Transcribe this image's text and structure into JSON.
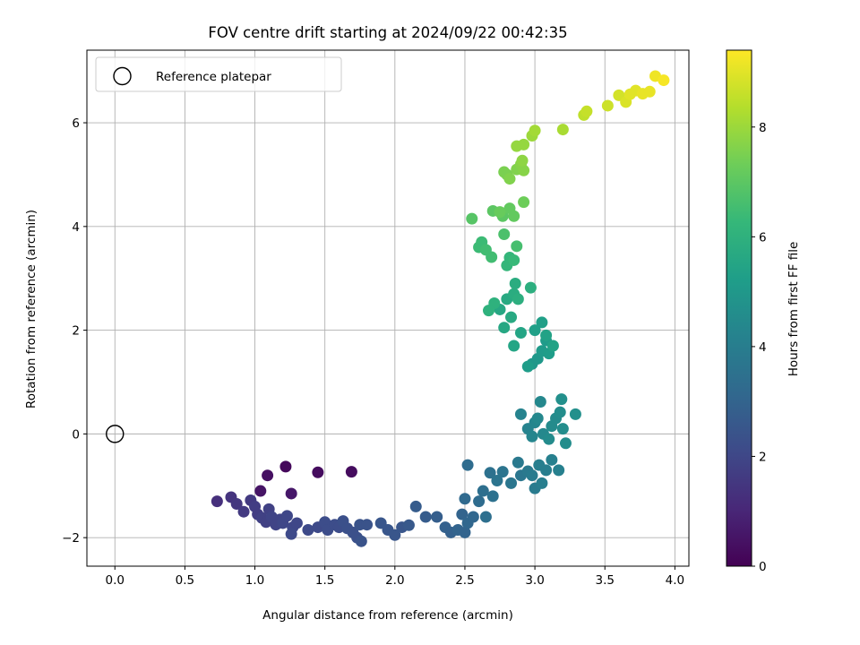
{
  "chart_data": {
    "type": "scatter",
    "title": "FOV centre drift starting at 2024/09/22 00:42:35",
    "xlabel": "Angular distance from reference (arcmin)",
    "ylabel": "Rotation from reference (arcmin)",
    "xlim": [
      -0.2,
      4.1
    ],
    "ylim": [
      -2.55,
      7.4
    ],
    "xticks": [
      "0.0",
      "0.5",
      "1.0",
      "1.5",
      "2.0",
      "2.5",
      "3.0",
      "3.5",
      "4.0"
    ],
    "yticks": [
      "−2",
      "0",
      "2",
      "4",
      "6"
    ],
    "grid": true,
    "legend": {
      "placement": "top-left",
      "entries": [
        "Reference platepar"
      ]
    },
    "reference_point": {
      "x": 0.0,
      "y": 0.0
    },
    "colorbar": {
      "label": "Hours from first FF file",
      "colormap": "viridis",
      "range": [
        0,
        9.4
      ],
      "ticks": [
        "0",
        "2",
        "4",
        "6",
        "8"
      ]
    },
    "points": [
      [
        1.22,
        -0.63,
        0.2
      ],
      [
        1.69,
        -0.73,
        0.3
      ],
      [
        1.45,
        -0.74,
        0.3
      ],
      [
        1.09,
        -0.8,
        0.4
      ],
      [
        1.26,
        -1.15,
        0.6
      ],
      [
        1.04,
        -1.1,
        0.5
      ],
      [
        0.73,
        -1.3,
        1.3
      ],
      [
        0.83,
        -1.22,
        1.4
      ],
      [
        0.87,
        -1.35,
        1.5
      ],
      [
        0.92,
        -1.5,
        1.6
      ],
      [
        0.97,
        -1.28,
        1.6
      ],
      [
        1.0,
        -1.4,
        1.7
      ],
      [
        1.02,
        -1.55,
        1.7
      ],
      [
        1.05,
        -1.62,
        1.8
      ],
      [
        1.08,
        -1.7,
        1.8
      ],
      [
        1.1,
        -1.45,
        1.8
      ],
      [
        1.12,
        -1.6,
        1.9
      ],
      [
        1.15,
        -1.75,
        1.9
      ],
      [
        1.18,
        -1.65,
        1.9
      ],
      [
        1.2,
        -1.72,
        2.0
      ],
      [
        1.23,
        -1.58,
        2.0
      ],
      [
        1.27,
        -1.8,
        2.0
      ],
      [
        1.3,
        -1.72,
        2.0
      ],
      [
        1.26,
        -1.93,
        2.1
      ],
      [
        1.38,
        -1.85,
        2.1
      ],
      [
        1.45,
        -1.8,
        2.1
      ],
      [
        1.5,
        -1.7,
        2.2
      ],
      [
        1.52,
        -1.85,
        2.2
      ],
      [
        1.57,
        -1.75,
        2.2
      ],
      [
        1.6,
        -1.8,
        2.2
      ],
      [
        1.63,
        -1.68,
        2.3
      ],
      [
        1.66,
        -1.82,
        2.3
      ],
      [
        1.7,
        -1.9,
        2.3
      ],
      [
        1.73,
        -2.0,
        2.3
      ],
      [
        1.76,
        -2.07,
        2.4
      ],
      [
        1.75,
        -1.75,
        2.4
      ],
      [
        1.8,
        -1.75,
        2.4
      ],
      [
        1.9,
        -1.72,
        2.5
      ],
      [
        1.95,
        -1.85,
        2.5
      ],
      [
        2.0,
        -1.95,
        2.5
      ],
      [
        2.05,
        -1.8,
        2.5
      ],
      [
        2.1,
        -1.76,
        2.6
      ],
      [
        2.15,
        -1.4,
        2.7
      ],
      [
        2.22,
        -1.6,
        2.7
      ],
      [
        2.3,
        -1.6,
        2.8
      ],
      [
        2.36,
        -1.8,
        2.9
      ],
      [
        2.4,
        -1.9,
        2.9
      ],
      [
        2.45,
        -1.85,
        3.0
      ],
      [
        2.48,
        -1.55,
        3.0
      ],
      [
        2.5,
        -1.9,
        3.0
      ],
      [
        2.52,
        -1.72,
        3.1
      ],
      [
        2.56,
        -1.6,
        3.1
      ],
      [
        2.5,
        -1.25,
        3.2
      ],
      [
        2.52,
        -0.6,
        3.3
      ],
      [
        2.6,
        -1.3,
        3.3
      ],
      [
        2.63,
        -1.1,
        3.4
      ],
      [
        2.65,
        -1.6,
        3.4
      ],
      [
        2.7,
        -1.2,
        3.5
      ],
      [
        2.68,
        -0.75,
        3.5
      ],
      [
        2.73,
        -0.9,
        3.6
      ],
      [
        2.77,
        -0.73,
        3.6
      ],
      [
        2.83,
        -0.95,
        3.7
      ],
      [
        2.9,
        -0.8,
        3.7
      ],
      [
        2.95,
        -0.72,
        3.8
      ],
      [
        2.88,
        -0.55,
        3.8
      ],
      [
        2.98,
        -0.8,
        3.9
      ],
      [
        3.0,
        -1.05,
        3.9
      ],
      [
        3.05,
        -0.95,
        4.0
      ],
      [
        3.03,
        -0.6,
        4.0
      ],
      [
        3.08,
        -0.7,
        4.0
      ],
      [
        3.12,
        -0.5,
        4.1
      ],
      [
        3.17,
        -0.7,
        4.1
      ],
      [
        2.9,
        0.38,
        4.2
      ],
      [
        2.95,
        0.1,
        4.2
      ],
      [
        2.98,
        -0.05,
        4.3
      ],
      [
        3.0,
        0.22,
        4.3
      ],
      [
        3.02,
        0.3,
        4.4
      ],
      [
        3.04,
        0.62,
        4.4
      ],
      [
        3.06,
        0.0,
        4.4
      ],
      [
        3.1,
        -0.1,
        4.5
      ],
      [
        3.12,
        0.15,
        4.5
      ],
      [
        3.15,
        0.3,
        4.5
      ],
      [
        3.18,
        0.42,
        4.6
      ],
      [
        3.2,
        0.1,
        4.6
      ],
      [
        3.22,
        -0.18,
        4.6
      ],
      [
        3.19,
        0.67,
        4.7
      ],
      [
        3.29,
        0.38,
        4.7
      ],
      [
        2.98,
        1.35,
        5.0
      ],
      [
        3.02,
        1.45,
        5.0
      ],
      [
        3.05,
        1.6,
        5.1
      ],
      [
        3.08,
        1.8,
        5.1
      ],
      [
        3.1,
        1.55,
        5.2
      ],
      [
        2.95,
        1.3,
        5.2
      ],
      [
        3.0,
        2.0,
        5.3
      ],
      [
        3.05,
        2.15,
        5.3
      ],
      [
        3.13,
        1.7,
        5.4
      ],
      [
        3.08,
        1.9,
        5.4
      ],
      [
        2.9,
        1.95,
        5.5
      ],
      [
        2.85,
        1.7,
        5.5
      ],
      [
        2.78,
        2.05,
        5.6
      ],
      [
        2.75,
        2.4,
        5.6
      ],
      [
        2.83,
        2.25,
        5.7
      ],
      [
        2.8,
        2.6,
        5.7
      ],
      [
        2.85,
        2.7,
        5.8
      ],
      [
        2.86,
        2.9,
        5.8
      ],
      [
        2.88,
        2.6,
        5.9
      ],
      [
        2.97,
        2.82,
        5.9
      ],
      [
        2.71,
        2.52,
        6.0
      ],
      [
        2.67,
        2.38,
        6.0
      ],
      [
        2.8,
        3.25,
        6.2
      ],
      [
        2.82,
        3.4,
        6.2
      ],
      [
        2.85,
        3.35,
        6.3
      ],
      [
        2.6,
        3.6,
        6.4
      ],
      [
        2.62,
        3.7,
        6.4
      ],
      [
        2.65,
        3.55,
        6.5
      ],
      [
        2.69,
        3.41,
        6.5
      ],
      [
        2.87,
        3.62,
        6.6
      ],
      [
        2.78,
        3.85,
        6.7
      ],
      [
        2.55,
        4.15,
        6.9
      ],
      [
        2.7,
        4.3,
        7.0
      ],
      [
        2.77,
        4.2,
        7.0
      ],
      [
        2.82,
        4.35,
        7.1
      ],
      [
        2.85,
        4.2,
        7.1
      ],
      [
        2.75,
        4.28,
        7.2
      ],
      [
        2.92,
        4.47,
        7.3
      ],
      [
        2.78,
        5.05,
        7.5
      ],
      [
        2.8,
        5.0,
        7.5
      ],
      [
        2.82,
        4.92,
        7.6
      ],
      [
        2.87,
        5.1,
        7.6
      ],
      [
        2.9,
        5.2,
        7.7
      ],
      [
        2.92,
        5.08,
        7.7
      ],
      [
        2.91,
        5.27,
        7.8
      ],
      [
        2.87,
        5.55,
        7.9
      ],
      [
        2.92,
        5.58,
        7.9
      ],
      [
        2.98,
        5.75,
        8.0
      ],
      [
        3.0,
        5.85,
        8.1
      ],
      [
        3.2,
        5.87,
        8.2
      ],
      [
        3.35,
        6.15,
        8.5
      ],
      [
        3.37,
        6.22,
        8.6
      ],
      [
        3.52,
        6.33,
        8.7
      ],
      [
        3.6,
        6.53,
        8.8
      ],
      [
        3.65,
        6.4,
        8.9
      ],
      [
        3.68,
        6.55,
        9.0
      ],
      [
        3.72,
        6.62,
        9.0
      ],
      [
        3.77,
        6.56,
        9.1
      ],
      [
        3.82,
        6.6,
        9.1
      ],
      [
        3.86,
        6.9,
        9.2
      ],
      [
        3.92,
        6.82,
        9.3
      ]
    ]
  }
}
